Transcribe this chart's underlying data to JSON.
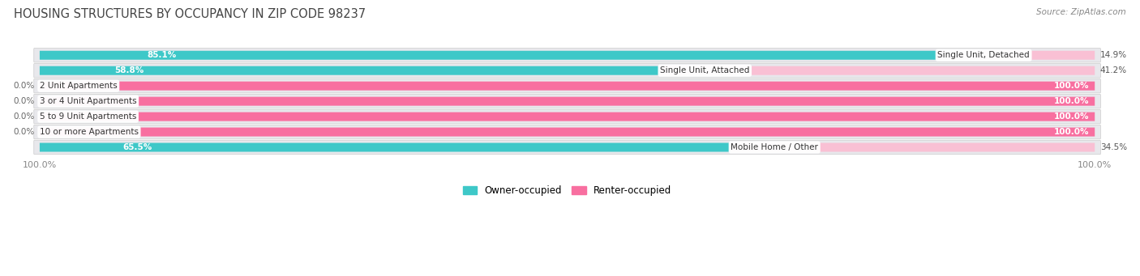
{
  "title": "HOUSING STRUCTURES BY OCCUPANCY IN ZIP CODE 98237",
  "source": "Source: ZipAtlas.com",
  "categories": [
    "Single Unit, Detached",
    "Single Unit, Attached",
    "2 Unit Apartments",
    "3 or 4 Unit Apartments",
    "5 to 9 Unit Apartments",
    "10 or more Apartments",
    "Mobile Home / Other"
  ],
  "owner_pct": [
    85.1,
    58.8,
    0.0,
    0.0,
    0.0,
    0.0,
    65.5
  ],
  "renter_pct": [
    14.9,
    41.2,
    100.0,
    100.0,
    100.0,
    100.0,
    34.5
  ],
  "owner_color": "#3ec8c8",
  "renter_color": "#f86fa0",
  "owner_color_light": "#b2e5e5",
  "renter_color_light": "#f9c0d4",
  "row_bg_color": "#e8e8ec",
  "title_color": "#444444",
  "source_color": "#888888",
  "label_dark": "#444444",
  "label_white": "#ffffff",
  "figsize": [
    14.06,
    3.41
  ],
  "dpi": 100
}
